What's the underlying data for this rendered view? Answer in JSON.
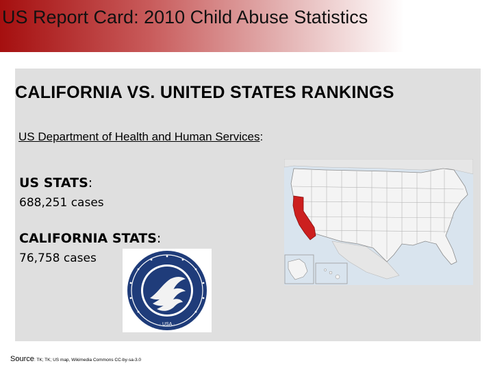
{
  "slide": {
    "title": "US Report Card: 2010 Child Abuse Statistics",
    "heading": "CALIFORNIA  VS. UNITED STATES  RANKINGS",
    "source_agency": "US Department of Health and Human Services",
    "source_agency_suffix": ":",
    "us_stats": {
      "label": "US STATS",
      "colon": ":",
      "value": "688,251 cases"
    },
    "ca_stats": {
      "label": "CALIFORNIA STATS",
      "colon": ":",
      "value": "76,758 cases"
    },
    "footer": {
      "label": "Source",
      "text": ": TK; TK; US map, Wikimedia Commons CC-by-sa-3.0"
    }
  },
  "map": {
    "icon": "us-map-california-highlighted",
    "highlight_color": "#cc1f1f"
  },
  "seal": {
    "icon": "hhs-department-seal",
    "ring_text": "DEPARTMENT OF HEALTH & HUMAN SERVICES · USA",
    "color": "#1f3c7a"
  }
}
